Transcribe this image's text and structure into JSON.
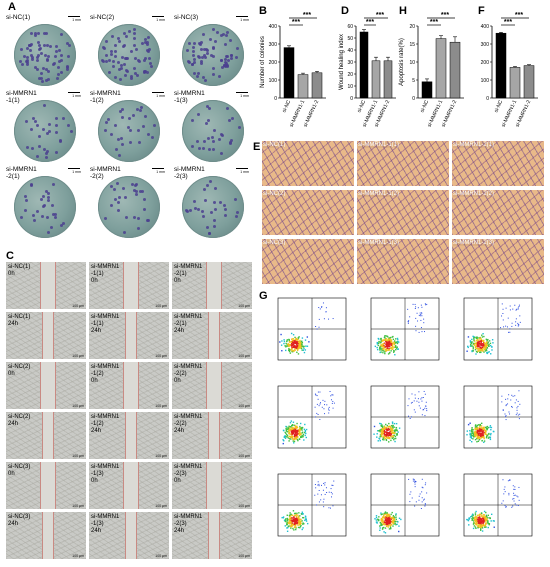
{
  "panels": {
    "A": {
      "label": "A",
      "rows": [
        {
          "row": 0,
          "cells": [
            "si-NC(1)",
            "si-NC(2)",
            "si-NC(3)"
          ]
        },
        {
          "row": 1,
          "cells": [
            "si-MMRN1\n-1(1)",
            "si-MMRN1\n-1(2)",
            "si-MMRN1\n-1(3)"
          ]
        },
        {
          "row": 2,
          "cells": [
            "si-MMRN1\n-2(1)",
            "si-MMRN1\n-2(2)",
            "si-MMRN1\n-2(3)"
          ]
        }
      ],
      "scale": "1 mm"
    },
    "B": {
      "label": "B"
    },
    "C": {
      "label": "C",
      "cells": [
        [
          "si-NC(1)\n0h",
          "si-MMRN1\n-1(1)\n0h",
          "si-MMRN1\n-2(1)\n0h"
        ],
        [
          "si-NC(1)\n24h",
          "si-MMRN1\n-1(1)\n24h",
          "si-MMRN1\n-2(1)\n24h"
        ],
        [
          "si-NC(2)\n0h",
          "si-MMRN1\n-1(2)\n0h",
          "si-MMRN1\n-2(2)\n0h"
        ],
        [
          "si-NC(2)\n24h",
          "si-MMRN1\n-1(2)\n24h",
          "si-MMRN1\n-2(2)\n24h"
        ],
        [
          "si-NC(3)\n0h",
          "si-MMRN1\n-1(3)\n0h",
          "si-MMRN1\n-2(3)\n0h"
        ],
        [
          "si-NC(3)\n24h",
          "si-MMRN1\n-1(3)\n24h",
          "si-MMRN1\n-2(3)\n24h"
        ]
      ],
      "scale": "100 μm"
    },
    "D": {
      "label": "D"
    },
    "E": {
      "label": "E",
      "cells": [
        [
          "si-NC(1)",
          "si-MMRN1-1(1)",
          "si-MMRN1-2(1)"
        ],
        [
          "si-NC(2)",
          "si-MMRN1-1(2)",
          "si-MMRN1-2(2)"
        ],
        [
          "si-NC(3)",
          "si-MMRN1-1(3)",
          "si-MMRN1-2(3)"
        ]
      ]
    },
    "F": {
      "label": "F"
    },
    "G": {
      "label": "G"
    },
    "H": {
      "label": "H"
    }
  },
  "chart_data": [
    {
      "id": "B",
      "type": "bar",
      "ylabel": "Number of colonies",
      "categories": [
        "si-NC",
        "si-MMRN1-1",
        "si-MMRN1-2"
      ],
      "values": [
        280,
        130,
        140
      ],
      "errors": [
        10,
        8,
        8
      ],
      "ylim": [
        0,
        400
      ],
      "yticks": [
        "0",
        "100",
        "200",
        "300",
        "400"
      ],
      "colors": [
        "#000000",
        "#a6a6a6",
        "#8c8c8c"
      ],
      "significance": [
        "***",
        "***"
      ]
    },
    {
      "id": "D",
      "type": "bar",
      "ylabel": "Wound healing index",
      "categories": [
        "si-NC",
        "si-MMRN1-1",
        "si-MMRN1-2"
      ],
      "values": [
        55,
        31,
        31
      ],
      "errors": [
        2,
        3,
        3
      ],
      "ylim": [
        0,
        60
      ],
      "yticks": [
        "0",
        "10",
        "20",
        "30",
        "40",
        "50",
        "60"
      ],
      "colors": [
        "#000000",
        "#a6a6a6",
        "#8c8c8c"
      ],
      "significance": [
        "***",
        "***"
      ]
    },
    {
      "id": "H",
      "type": "bar",
      "ylabel": "Apoptosis rate(%)",
      "categories": [
        "si-NC",
        "si-MMRN1-1",
        "si-MMRN1-2"
      ],
      "values": [
        4.5,
        16.5,
        15.5
      ],
      "errors": [
        0.8,
        0.8,
        1.5
      ],
      "ylim": [
        0,
        20
      ],
      "yticks": [
        "0",
        "5",
        "10",
        "15",
        "20"
      ],
      "colors": [
        "#000000",
        "#a6a6a6",
        "#8c8c8c"
      ],
      "significance": [
        "***",
        "***"
      ]
    },
    {
      "id": "F",
      "type": "bar",
      "ylabel": "",
      "categories": [
        "si-NC",
        "si-MMRN1-1",
        "si-MMRN1-2"
      ],
      "values": [
        360,
        170,
        180
      ],
      "errors": [
        5,
        5,
        5
      ],
      "ylim": [
        0,
        400
      ],
      "yticks": [
        "0",
        "100",
        "200",
        "300",
        "400"
      ],
      "colors": [
        "#000000",
        "#a6a6a6",
        "#8c8c8c"
      ],
      "significance": [
        "***",
        "***"
      ]
    }
  ]
}
